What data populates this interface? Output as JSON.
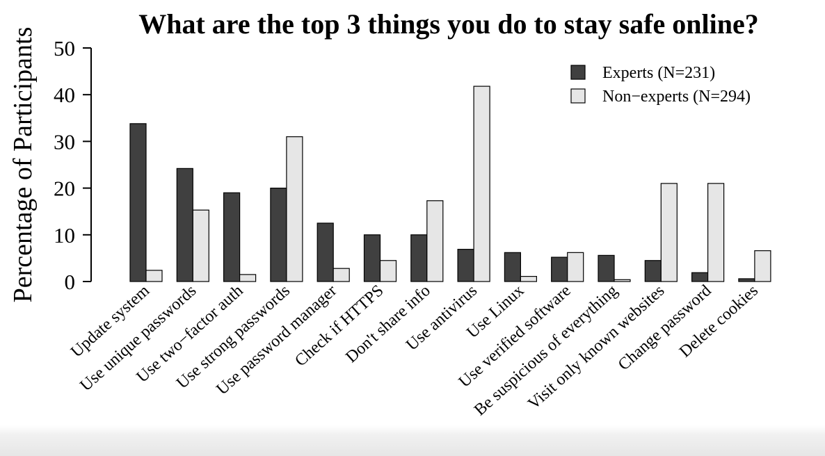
{
  "chart_data": {
    "type": "bar",
    "title": "What are the top 3 things you do to stay safe online?",
    "xlabel": "",
    "ylabel": "Percentage of Participants",
    "ylim": [
      0,
      50
    ],
    "yticks": [
      0,
      10,
      20,
      30,
      40,
      50
    ],
    "grid": false,
    "legend_position": "top-right",
    "categories": [
      "Update system",
      "Use unique passwords",
      "Use two−factor auth",
      "Use strong passwords",
      "Use password manager",
      "Check if HTTPS",
      "Don't share info",
      "Use antivirus",
      "Use Linux",
      "Use verified software",
      "Be suspicious of everything",
      "Visit only known websites",
      "Change password",
      "Delete cookies"
    ],
    "series": [
      {
        "name": "Experts (N=231)",
        "color": "#404040",
        "values": [
          33.8,
          24.2,
          19.0,
          20.0,
          12.5,
          10.0,
          10.0,
          6.9,
          6.2,
          5.2,
          5.6,
          4.5,
          1.9,
          0.6
        ]
      },
      {
        "name": "Non−experts (N=294)",
        "color": "#e6e6e6",
        "values": [
          2.4,
          15.3,
          1.5,
          31.0,
          2.8,
          4.5,
          17.3,
          41.8,
          1.1,
          6.2,
          0.4,
          21.0,
          21.0,
          6.6
        ]
      }
    ]
  }
}
